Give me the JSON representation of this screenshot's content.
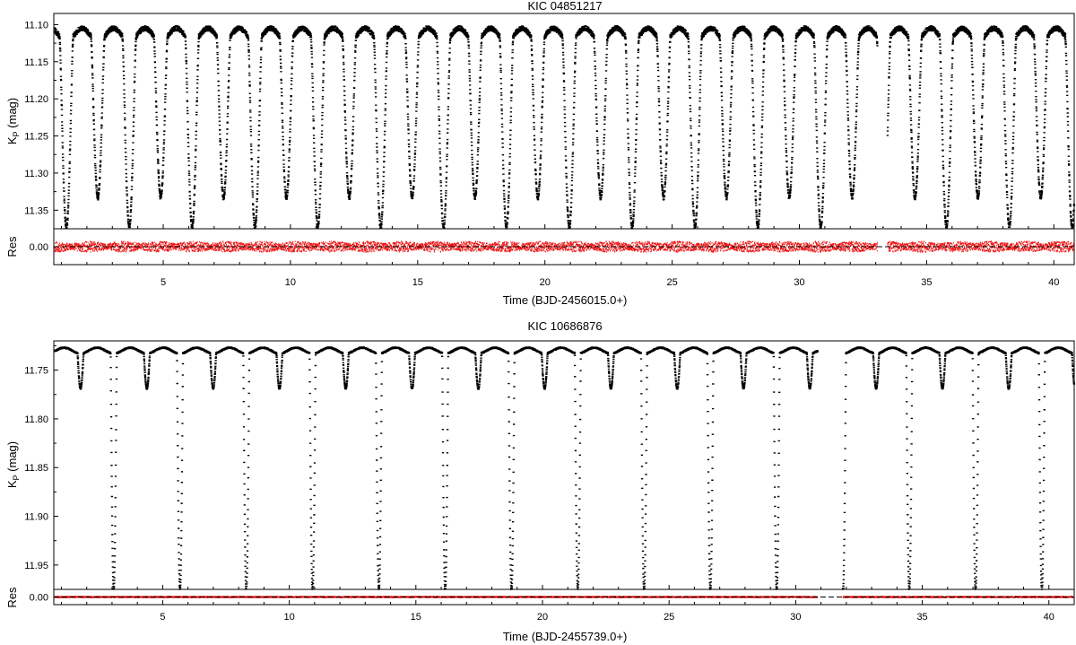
{
  "chart_data": [
    {
      "type": "scatter",
      "title": "KIC 04851217",
      "xlabel": "Time (BJD-2456015.0+)",
      "ylabel_main": "K",
      "ylabel_sub": "P",
      "ylabel_unit": " (mag)",
      "res_label": "Res",
      "xlim": [
        0.7,
        40.8
      ],
      "ylim": [
        11.375,
        11.085
      ],
      "y_inverted": true,
      "x_ticks": [
        5,
        10,
        15,
        20,
        25,
        30,
        35,
        40
      ],
      "x_tick_labels": [
        "5",
        "10",
        "15",
        "20",
        "25",
        "30",
        "35",
        "40"
      ],
      "y_ticks": [
        11.1,
        11.15,
        11.2,
        11.25,
        11.3,
        11.35
      ],
      "y_tick_labels": [
        "11.10",
        "11.15",
        "11.20",
        "11.25",
        "11.30",
        "11.35"
      ],
      "res_ticks": [
        0.0
      ],
      "res_tick_labels": [
        "0.00"
      ],
      "res_ylim": [
        0.04,
        -0.04
      ],
      "series": [
        {
          "name": "",
          "role": "light curve",
          "color": "#000000",
          "period_days": 2.4703,
          "primary_epoch": 1.18,
          "out_of_eclipse_mag": 11.105,
          "max_dimming_mag": 11.123,
          "primary_depth_mag": 0.25,
          "secondary_depth_mag": 0.21,
          "eclipse_half_width_days": 0.27,
          "gaps": [
            [
              33.05,
              33.45
            ]
          ],
          "primary_minima_days": [
            1.18,
            3.65,
            6.12,
            8.59,
            11.06,
            13.53,
            16.0,
            18.47,
            20.94,
            23.41,
            25.88,
            28.35,
            30.82,
            33.29,
            35.76,
            38.23,
            40.7
          ]
        },
        {
          "name": "",
          "role": "residuals",
          "color": "#ee1111",
          "amplitude_mag": 0.012,
          "gaps": [
            [
              33.05,
              33.45
            ]
          ]
        }
      ]
    },
    {
      "type": "scatter",
      "title": "KIC 10686876",
      "xlabel": "Time (BJD-2455739.0+)",
      "ylabel_main": "K",
      "ylabel_sub": "P",
      "ylabel_unit": " (mag)",
      "res_label": "Res",
      "xlim": [
        0.7,
        41.0
      ],
      "ylim": [
        11.975,
        11.72
      ],
      "y_inverted": true,
      "x_ticks": [
        5,
        10,
        15,
        20,
        25,
        30,
        35,
        40
      ],
      "x_tick_labels": [
        "5",
        "10",
        "15",
        "20",
        "25",
        "30",
        "35",
        "40"
      ],
      "y_ticks": [
        11.75,
        11.8,
        11.85,
        11.9,
        11.95
      ],
      "y_tick_labels": [
        "11.75",
        "11.80",
        "11.85",
        "11.90",
        "11.95"
      ],
      "res_ticks": [
        0.0
      ],
      "res_tick_labels": [
        "0.00"
      ],
      "res_ylim": [
        0.03,
        -0.03
      ],
      "series": [
        {
          "name": "",
          "role": "light curve",
          "color": "#000000",
          "period_days": 2.6184,
          "primary_epoch": 3.05,
          "out_of_eclipse_mag": 11.727,
          "max_dimming_mag": 11.733,
          "primary_depth_mag": 0.243,
          "secondary_depth_mag": 0.036,
          "eclipse_half_width_days": 0.12,
          "gaps": [
            [
              30.85,
              31.85
            ]
          ],
          "primary_minima_days": [
            3.05,
            5.67,
            8.29,
            10.9,
            13.52,
            16.14,
            18.76,
            21.38,
            24.0,
            26.62,
            29.23,
            31.85,
            34.47,
            37.09,
            39.71
          ]
        },
        {
          "name": "",
          "role": "residuals",
          "color": "#ee1111",
          "amplitude_mag": 0.002,
          "gaps": [
            [
              30.85,
              31.85
            ]
          ]
        }
      ]
    }
  ]
}
